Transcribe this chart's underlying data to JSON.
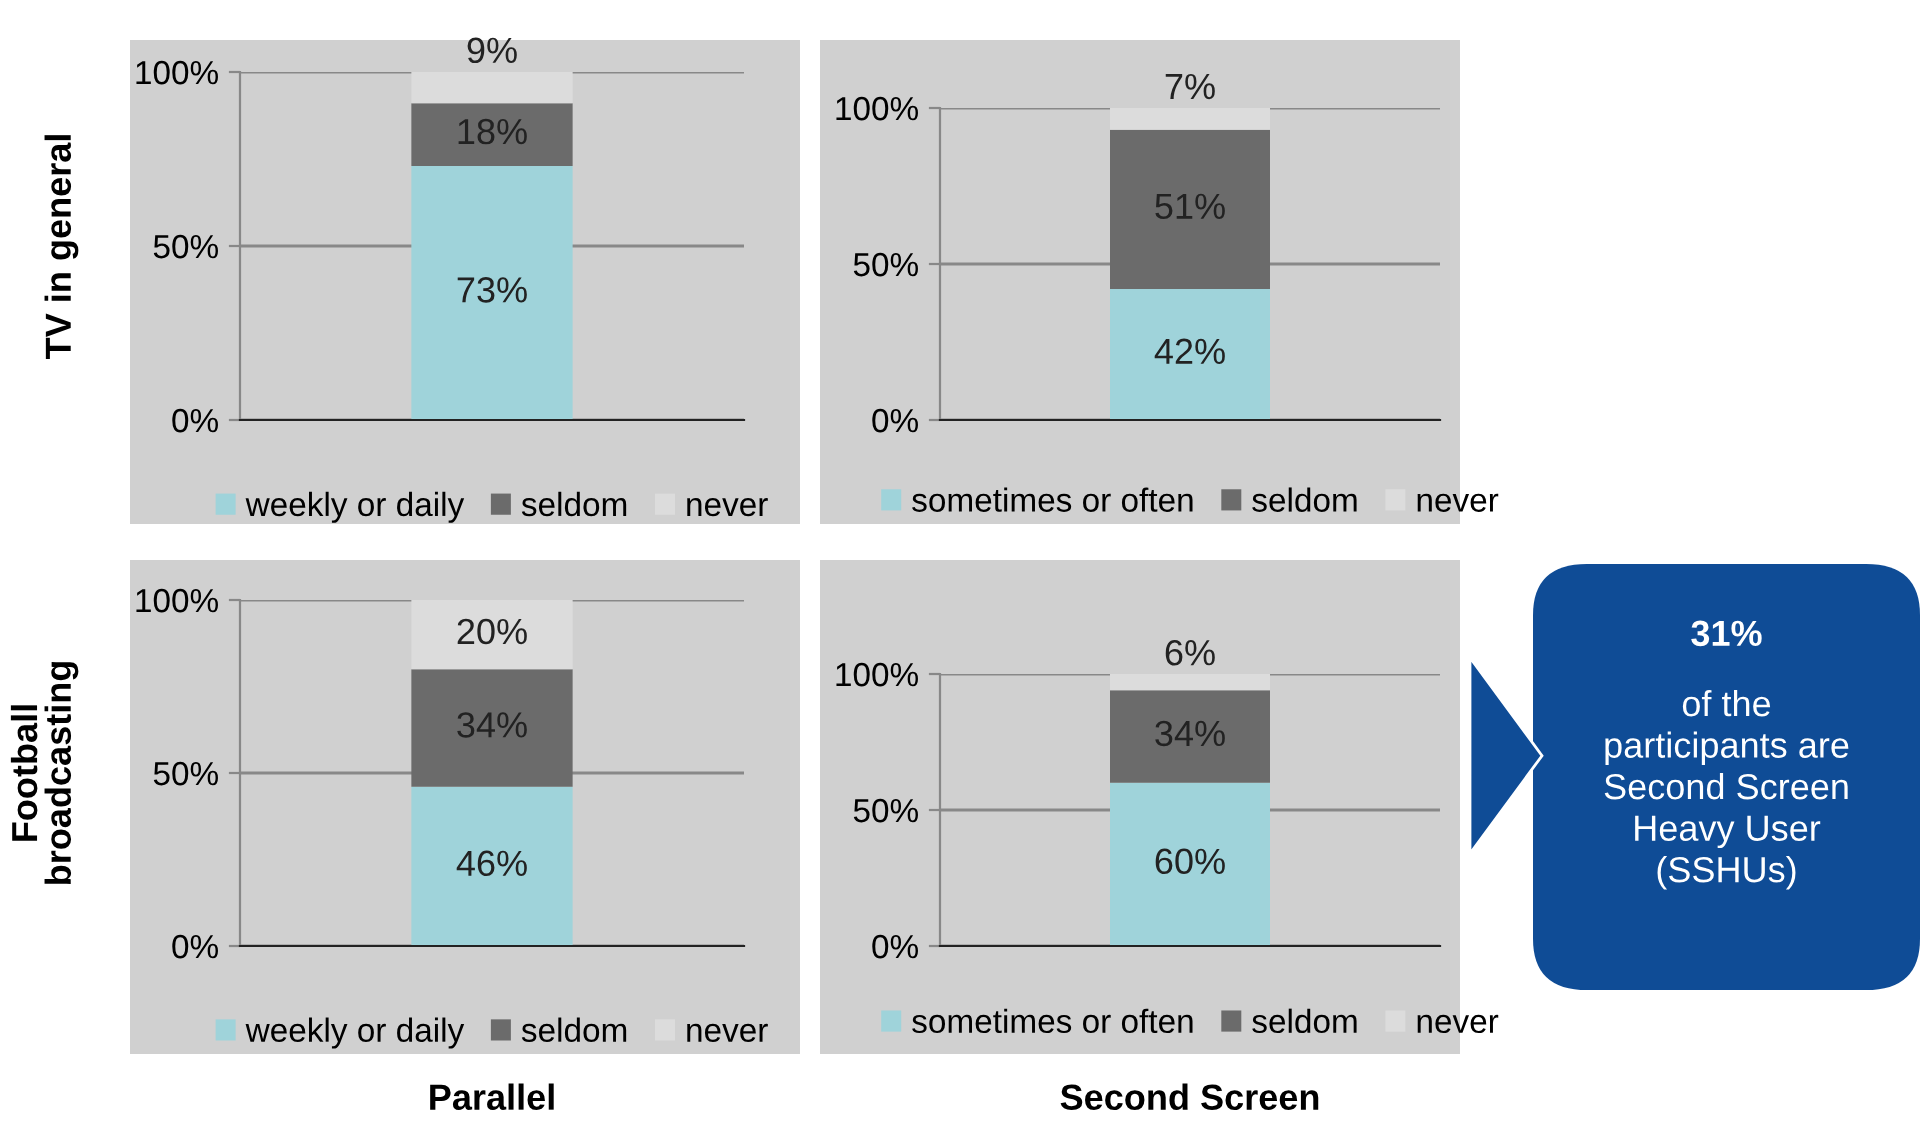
{
  "chart_data": [
    {
      "type": "bar",
      "stacked": true,
      "categories": [
        null
      ],
      "ylabel": "TV in general",
      "ylim": [
        0,
        100
      ],
      "yticks": [
        {
          "value": 0,
          "label": "0%"
        },
        {
          "value": 50,
          "label": "50%"
        },
        {
          "value": 100,
          "label": "100%"
        }
      ],
      "grid": "y",
      "legend": "bottom",
      "series": [
        {
          "name": "weekly or daily",
          "color": "#9fd3da",
          "values": [
            73
          ],
          "value_labels": [
            "73%"
          ]
        },
        {
          "name": "seldom",
          "color": "#6b6b6b",
          "values": [
            18
          ],
          "value_labels": [
            "18%"
          ]
        },
        {
          "name": "never",
          "color": "#dcdcdc",
          "values": [
            9
          ],
          "value_labels": [
            "9%"
          ]
        }
      ]
    },
    {
      "type": "bar",
      "stacked": true,
      "categories": [
        null
      ],
      "ylim": [
        0,
        100
      ],
      "yticks": [
        {
          "value": 0,
          "label": "0%"
        },
        {
          "value": 50,
          "label": "50%"
        },
        {
          "value": 100,
          "label": "100%"
        }
      ],
      "grid": "y",
      "legend": "bottom",
      "series": [
        {
          "name": "sometimes or often",
          "color": "#9fd3da",
          "values": [
            42
          ],
          "value_labels": [
            "42%"
          ]
        },
        {
          "name": "seldom",
          "color": "#6b6b6b",
          "values": [
            51
          ],
          "value_labels": [
            "51%"
          ]
        },
        {
          "name": "never",
          "color": "#dcdcdc",
          "values": [
            7
          ],
          "value_labels": [
            "7%"
          ]
        }
      ]
    },
    {
      "type": "bar",
      "stacked": true,
      "categories": [
        null
      ],
      "ylabel": "Football\nbroadcasting",
      "xlabel": "Parallel",
      "ylim": [
        0,
        100
      ],
      "yticks": [
        {
          "value": 0,
          "label": "0%"
        },
        {
          "value": 50,
          "label": "50%"
        },
        {
          "value": 100,
          "label": "100%"
        }
      ],
      "grid": "y",
      "legend": "bottom",
      "series": [
        {
          "name": "weekly or daily",
          "color": "#9fd3da",
          "values": [
            46
          ],
          "value_labels": [
            "46%"
          ]
        },
        {
          "name": "seldom",
          "color": "#6b6b6b",
          "values": [
            34
          ],
          "value_labels": [
            "34%"
          ]
        },
        {
          "name": "never",
          "color": "#dcdcdc",
          "values": [
            20
          ],
          "value_labels": [
            "20%"
          ]
        }
      ]
    },
    {
      "type": "bar",
      "stacked": true,
      "categories": [
        null
      ],
      "xlabel": "Second Screen",
      "ylim": [
        0,
        100
      ],
      "yticks": [
        {
          "value": 0,
          "label": "0%"
        },
        {
          "value": 50,
          "label": "50%"
        },
        {
          "value": 100,
          "label": "100%"
        }
      ],
      "grid": "y",
      "legend": "bottom",
      "series": [
        {
          "name": "sometimes or often",
          "color": "#9fd3da",
          "values": [
            60
          ],
          "value_labels": [
            "60%"
          ]
        },
        {
          "name": "seldom",
          "color": "#6b6b6b",
          "values": [
            34
          ],
          "value_labels": [
            "34%"
          ]
        },
        {
          "name": "never",
          "color": "#dcdcdc",
          "values": [
            6
          ],
          "value_labels": [
            "6%"
          ]
        }
      ]
    },
    {
      "type": "other",
      "annotations": [
        "31%",
        "of the\nparticipants are\nSecond Screen\nHeavy User\n(SSHUs)"
      ]
    }
  ]
}
